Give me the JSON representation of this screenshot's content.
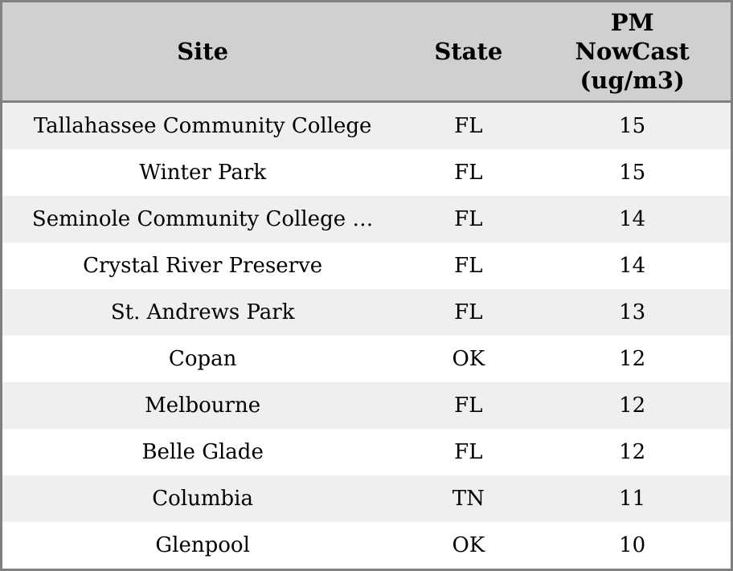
{
  "chart_data": {
    "type": "table",
    "columns": [
      {
        "key": "site",
        "label": "Site"
      },
      {
        "key": "state",
        "label": "State"
      },
      {
        "key": "pm",
        "label": "PM NowCast (ug/m3)"
      }
    ],
    "rows": [
      {
        "site": "Tallahassee Community College",
        "state": "FL",
        "pm": "15"
      },
      {
        "site": "Winter Park",
        "state": "FL",
        "pm": "15"
      },
      {
        "site": "Seminole Community College …",
        "state": "FL",
        "pm": "14"
      },
      {
        "site": "Crystal River Preserve",
        "state": "FL",
        "pm": "14"
      },
      {
        "site": "St. Andrews Park",
        "state": "FL",
        "pm": "13"
      },
      {
        "site": "Copan",
        "state": "OK",
        "pm": "12"
      },
      {
        "site": "Melbourne",
        "state": "FL",
        "pm": "12"
      },
      {
        "site": "Belle Glade",
        "state": "FL",
        "pm": "12"
      },
      {
        "site": "Columbia",
        "state": "TN",
        "pm": "11"
      },
      {
        "site": "Glenpool",
        "state": "OK",
        "pm": "10"
      }
    ]
  },
  "colors": {
    "header_bg": "#d0d0d0",
    "row_alt_bg": "#efefef",
    "row_bg": "#ffffff",
    "border": "#808080",
    "text": "#000000"
  }
}
